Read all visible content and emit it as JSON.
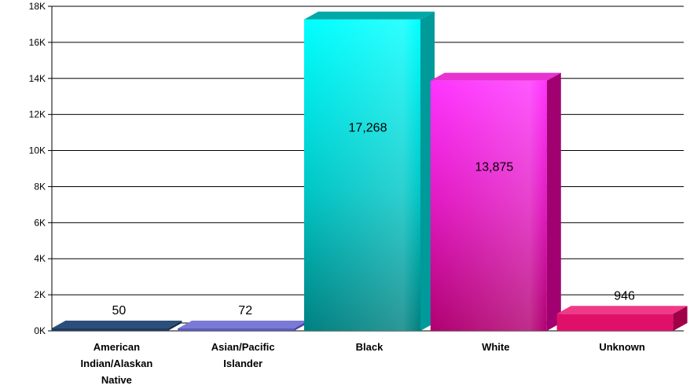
{
  "chart_data": {
    "type": "bar",
    "categories": [
      [
        "American",
        "Indian/Alaskan",
        "Native"
      ],
      [
        "Asian/Pacific",
        "Islander"
      ],
      [
        "Black"
      ],
      [
        "White"
      ],
      [
        "Unknown"
      ]
    ],
    "values": [
      50,
      72,
      17268,
      13875,
      946
    ],
    "data_labels": [
      "50",
      "72",
      "17,268",
      "13,875",
      "946"
    ],
    "y_ticks": [
      "0K",
      "2K",
      "4K",
      "6K",
      "8K",
      "10K",
      "12K",
      "14K",
      "16K",
      "18K"
    ],
    "ylim": [
      0,
      18000
    ],
    "grid": true,
    "bar_colors": [
      {
        "front": "#1f3b5e",
        "top": "#2b4f7a",
        "side": "#16304d"
      },
      {
        "front": "#5b5bb8",
        "top": "#7a7ad6",
        "side": "#4646a0"
      },
      {
        "front": "#00c8c8",
        "top": "#00a8a8",
        "side": "#009a9a"
      },
      {
        "front": "#d81aa8",
        "top": "#e833d0",
        "side": "#a00070"
      },
      {
        "front": "#e0106a",
        "top": "#f03a88",
        "side": "#a00048"
      }
    ]
  }
}
